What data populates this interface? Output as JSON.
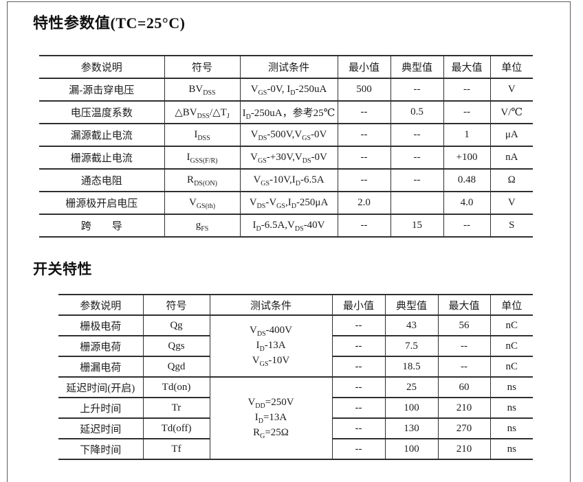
{
  "section1": {
    "title": "特性参数值(TC=25°C)"
  },
  "section2": {
    "title": "开关特性"
  },
  "table1": {
    "headers": [
      "参数说明",
      "符号",
      "测试条件",
      "最小值",
      "典型值",
      "最大值",
      "单位"
    ],
    "rows": [
      {
        "param": "漏-源击穿电压",
        "symbol": "BV~DSS~",
        "cond": "V~GS~-0V, I~D~-250uA",
        "min": "500",
        "typ": "--",
        "max": "--",
        "unit": "V"
      },
      {
        "param": "电压温度系数",
        "symbol": "△BV~DSS~/△T~J~",
        "cond": "I~D~-250uA，参考25℃",
        "min": "--",
        "typ": "0.5",
        "max": "--",
        "unit": "V/℃"
      },
      {
        "param": "漏源截止电流",
        "symbol": "I~DSS~",
        "cond": "V~DS~-500V,V~GS~-0V",
        "min": "--",
        "typ": "--",
        "max": "1",
        "unit": "μA"
      },
      {
        "param": "栅源截止电流",
        "symbol": "I~GSS(F/R)~",
        "cond": "V~GS~-+30V,V~DS~-0V",
        "min": "--",
        "typ": "--",
        "max": "+100",
        "unit": "nA"
      },
      {
        "param": "通态电阻",
        "symbol": "R~DS(ON)~",
        "cond": "V~GS~-10V,I~D~-6.5A",
        "min": "--",
        "typ": "--",
        "max": "0.48",
        "unit": "Ω"
      },
      {
        "param": "栅源极开启电压",
        "symbol": "V~GS(th)~",
        "cond": "V~DS~-V~GS~,I~D~-250μA",
        "min": "2.0",
        "typ": "",
        "max": "4.0",
        "unit": "V"
      },
      {
        "param": "跨　　导",
        "symbol": "g~FS~",
        "cond": "I~D~-6.5A,V~DS~-40V",
        "min": "--",
        "typ": "15",
        "max": "--",
        "unit": "S"
      }
    ]
  },
  "table2": {
    "headers": [
      "参数说明",
      "符号",
      "测试条件",
      "最小值",
      "典型值",
      "最大值",
      "单位"
    ],
    "cond_groups": {
      "charge": "V~DS~-400V\nI~D~-13A\nV~GS~-10V",
      "switching": "V~DD~=250V\nI~D~=13A\nR~G~=25Ω"
    },
    "rows": [
      {
        "param": "栅极电荷",
        "symbol": "Qg",
        "min": "--",
        "typ": "43",
        "max": "56",
        "unit": "nC"
      },
      {
        "param": "栅源电荷",
        "symbol": "Qgs",
        "min": "--",
        "typ": "7.5",
        "max": "--",
        "unit": "nC"
      },
      {
        "param": "栅漏电荷",
        "symbol": "Qgd",
        "min": "--",
        "typ": "18.5",
        "max": "--",
        "unit": "nC"
      },
      {
        "param": "延迟时间(开启)",
        "symbol": "Td(on)",
        "min": "--",
        "typ": "25",
        "max": "60",
        "unit": "ns"
      },
      {
        "param": "上升时间",
        "symbol": "Tr",
        "min": "--",
        "typ": "100",
        "max": "210",
        "unit": "ns"
      },
      {
        "param": "延迟时间",
        "symbol": "Td(off)",
        "min": "--",
        "typ": "130",
        "max": "270",
        "unit": "ns"
      },
      {
        "param": "下降时间",
        "symbol": "Tf",
        "min": "--",
        "typ": "100",
        "max": "210",
        "unit": "ns"
      }
    ]
  }
}
